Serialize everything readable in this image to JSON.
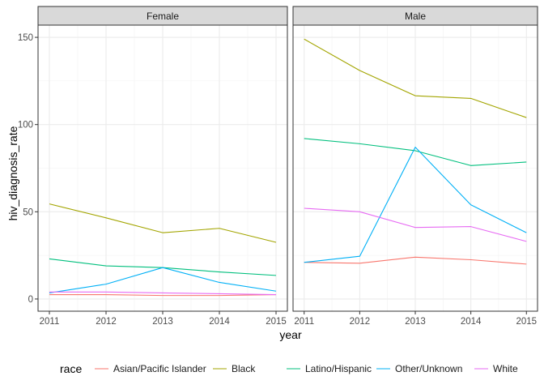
{
  "chart_data": {
    "type": "line",
    "xlabel": "year",
    "ylabel": "hiv_diagnosis_rate",
    "x": [
      2011,
      2012,
      2013,
      2014,
      2015
    ],
    "xlim": [
      2010.8,
      2015.2
    ],
    "ylim": [
      -7,
      157
    ],
    "y_ticks": [
      0,
      50,
      100,
      150
    ],
    "grid": true,
    "legend": {
      "title": "race",
      "position": "bottom",
      "entries": [
        "Asian/Pacific Islander",
        "Black",
        "Latino/Hispanic",
        "Other/Unknown",
        "White"
      ]
    },
    "colors": {
      "Asian/Pacific Islander": "#F8766D",
      "Black": "#A3A500",
      "Latino/Hispanic": "#00BF7D",
      "Other/Unknown": "#00B0F6",
      "White": "#E76BF3"
    },
    "panels": [
      {
        "title": "Female",
        "series": [
          {
            "name": "Asian/Pacific Islander",
            "values": [
              2.5,
              2.5,
              2,
              2,
              2.5
            ]
          },
          {
            "name": "Black",
            "values": [
              54.5,
              46.5,
              38,
              40.5,
              32.5
            ]
          },
          {
            "name": "Latino/Hispanic",
            "values": [
              23,
              19,
              18,
              15.5,
              13.5
            ]
          },
          {
            "name": "Other/Unknown",
            "values": [
              3.5,
              8.5,
              18,
              9.5,
              4.5
            ]
          },
          {
            "name": "White",
            "values": [
              4,
              4,
              3.5,
              3,
              2.5
            ]
          }
        ]
      },
      {
        "title": "Male",
        "series": [
          {
            "name": "Asian/Pacific Islander",
            "values": [
              21,
              20.5,
              24,
              22.5,
              20
            ]
          },
          {
            "name": "Black",
            "values": [
              149,
              131,
              116.5,
              115,
              104
            ]
          },
          {
            "name": "Latino/Hispanic",
            "values": [
              92,
              89,
              85,
              76.5,
              78.5
            ]
          },
          {
            "name": "Other/Unknown",
            "values": [
              21,
              24.5,
              87,
              54,
              38
            ]
          },
          {
            "name": "White",
            "values": [
              52,
              50,
              41,
              41.5,
              33
            ]
          }
        ]
      }
    ]
  }
}
